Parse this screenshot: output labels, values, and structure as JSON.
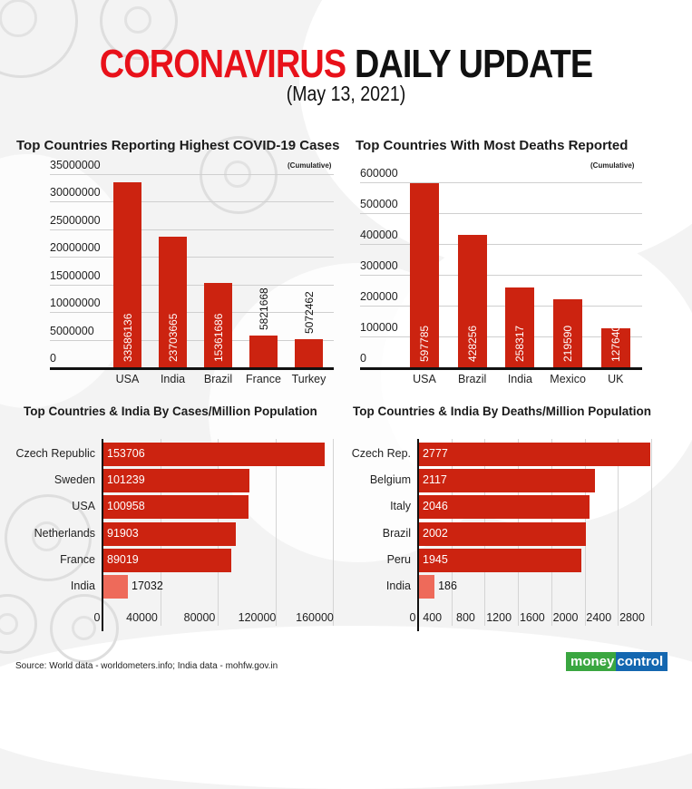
{
  "header": {
    "title_red": "CORONAVIRUS",
    "title_black": "DAILY UPDATE",
    "date": "(May 13, 2021)"
  },
  "colors": {
    "title_red": "#e8111a",
    "bar": "#cc2310",
    "india_bar": "#ee6a5a",
    "logo_green": "#3aa640",
    "logo_blue": "#1467b0"
  },
  "footer": {
    "source": "Source: World data - worldometers.info; India data - mohfw.gov.in",
    "logo_part1": "money",
    "logo_part2": "control"
  },
  "chart_data": [
    {
      "type": "bar",
      "title": "Top Countries Reporting Highest COVID-19 Cases",
      "subtitle": "(Cumulative)",
      "categories": [
        "USA",
        "India",
        "Brazil",
        "France",
        "Turkey"
      ],
      "values": [
        33586136,
        23703665,
        15361686,
        5821668,
        5072462
      ],
      "value_labels": [
        "33586136",
        "23703665",
        "15361686",
        "5821668",
        "5072462"
      ],
      "yticks": [
        "0",
        "5000000",
        "10000000",
        "15000000",
        "20000000",
        "25000000",
        "30000000",
        "35000000"
      ],
      "ylim": [
        0,
        35000000
      ],
      "xlabel": "",
      "ylabel": "",
      "grid": true
    },
    {
      "type": "bar",
      "title": "Top Countries With Most Deaths Reported",
      "subtitle": "(Cumulative)",
      "categories": [
        "USA",
        "Brazil",
        "India",
        "Mexico",
        "UK"
      ],
      "values": [
        597785,
        428256,
        258317,
        219590,
        127640
      ],
      "value_labels": [
        "597785",
        "428256",
        "258317",
        "219590",
        "127640"
      ],
      "yticks": [
        "0",
        "100000",
        "200000",
        "300000",
        "400000",
        "500000",
        "600000"
      ],
      "ylim": [
        0,
        600000
      ],
      "xlabel": "",
      "ylabel": "",
      "grid": true
    },
    {
      "type": "bar",
      "orientation": "horizontal",
      "title": "Top Countries & India By Cases/Million Population",
      "categories": [
        "Czech Republic",
        "Sweden",
        "USA",
        "Netherlands",
        "France",
        "India"
      ],
      "values": [
        153706,
        101239,
        100958,
        91903,
        89019,
        17032
      ],
      "value_labels": [
        "153706",
        "101239",
        "100958",
        "91903",
        "89019",
        "17032"
      ],
      "xticks": [
        "0",
        "40000",
        "80000",
        "120000",
        "160000"
      ],
      "xlim": [
        0,
        160000
      ],
      "grid": true,
      "highlight": "India"
    },
    {
      "type": "bar",
      "orientation": "horizontal",
      "title": "Top Countries & India By Deaths/Million Population",
      "categories": [
        "Czech Rep.",
        "Belgium",
        "Italy",
        "Brazil",
        "Peru",
        "India"
      ],
      "values": [
        2777,
        2117,
        2046,
        2002,
        1945,
        186
      ],
      "value_labels": [
        "2777",
        "2117",
        "2046",
        "2002",
        "1945",
        "186"
      ],
      "xticks": [
        "0",
        "400",
        "800",
        "1200",
        "1600",
        "2000",
        "2400",
        "2800"
      ],
      "xlim": [
        0,
        2800
      ],
      "grid": true,
      "highlight": "India"
    }
  ]
}
